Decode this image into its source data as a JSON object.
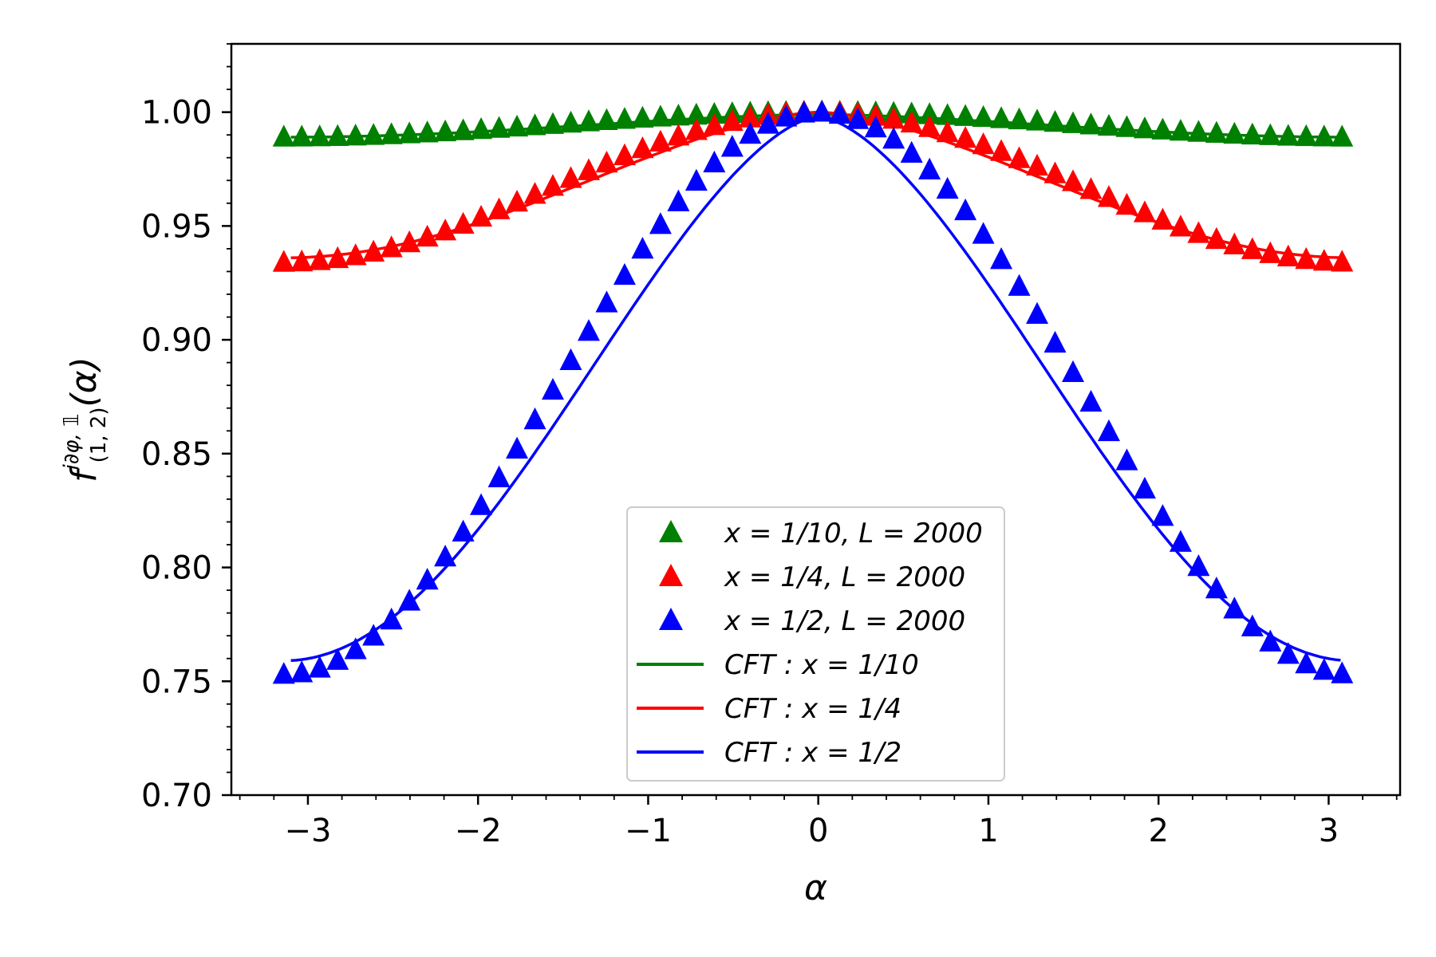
{
  "chart_data": {
    "type": "scatter",
    "xlabel": "α",
    "ylabel": {
      "base": "f",
      "superscript": "i∂φ, 𝟙",
      "subscript": "(1, 2)",
      "argument": "(α)"
    },
    "xlim": [
      -3.45,
      3.42
    ],
    "ylim": [
      0.7,
      1.03
    ],
    "x_ticks": [
      -3,
      -2,
      -1,
      0,
      1,
      2,
      3
    ],
    "x_tick_labels": [
      "−3",
      "−2",
      "−1",
      "0",
      "1",
      "2",
      "3"
    ],
    "y_ticks": [
      0.7,
      0.75,
      0.8,
      0.85,
      0.9,
      0.95,
      1.0
    ],
    "y_tick_labels": [
      "0.70",
      "0.75",
      "0.80",
      "0.85",
      "0.90",
      "0.95",
      "1.00"
    ],
    "grid": false,
    "legend_position": "lower-center",
    "x_points_range": [
      -3.1416,
      3.0788
    ],
    "x_points_count": 60,
    "series": [
      {
        "name": "x = 1/10, L = 2000",
        "kind": "markers",
        "marker": "triangle",
        "color": "#008000",
        "endpoint_value": 0.989,
        "center_value": 1.0,
        "curvature_exponent": 2
      },
      {
        "name": "x = 1/4, L = 2000",
        "kind": "markers",
        "marker": "triangle",
        "color": "#ff0000",
        "endpoint_value": 0.934,
        "center_value": 1.0,
        "curvature_exponent": 2
      },
      {
        "name": "x = 1/2, L = 2000",
        "kind": "markers",
        "marker": "triangle",
        "color": "#0000ff",
        "endpoint_value": 0.753,
        "center_value": 1.0,
        "curvature_exponent": 2
      },
      {
        "name": "CFT : x = 1/10",
        "kind": "line",
        "color": "#008000",
        "endpoint_value": 0.989,
        "center_value": 0.999,
        "x_range": [
          -3.1,
          3.07
        ]
      },
      {
        "name": "CFT : x = 1/4",
        "kind": "line",
        "color": "#ff0000",
        "endpoint_value": 0.936,
        "center_value": 1.0,
        "x_range": [
          -3.1,
          3.07
        ]
      },
      {
        "name": "CFT : x = 1/2",
        "kind": "line",
        "color": "#0000ff",
        "endpoint_value": 0.759,
        "center_value": 0.998,
        "x_range": [
          -3.1,
          3.07
        ]
      }
    ]
  }
}
